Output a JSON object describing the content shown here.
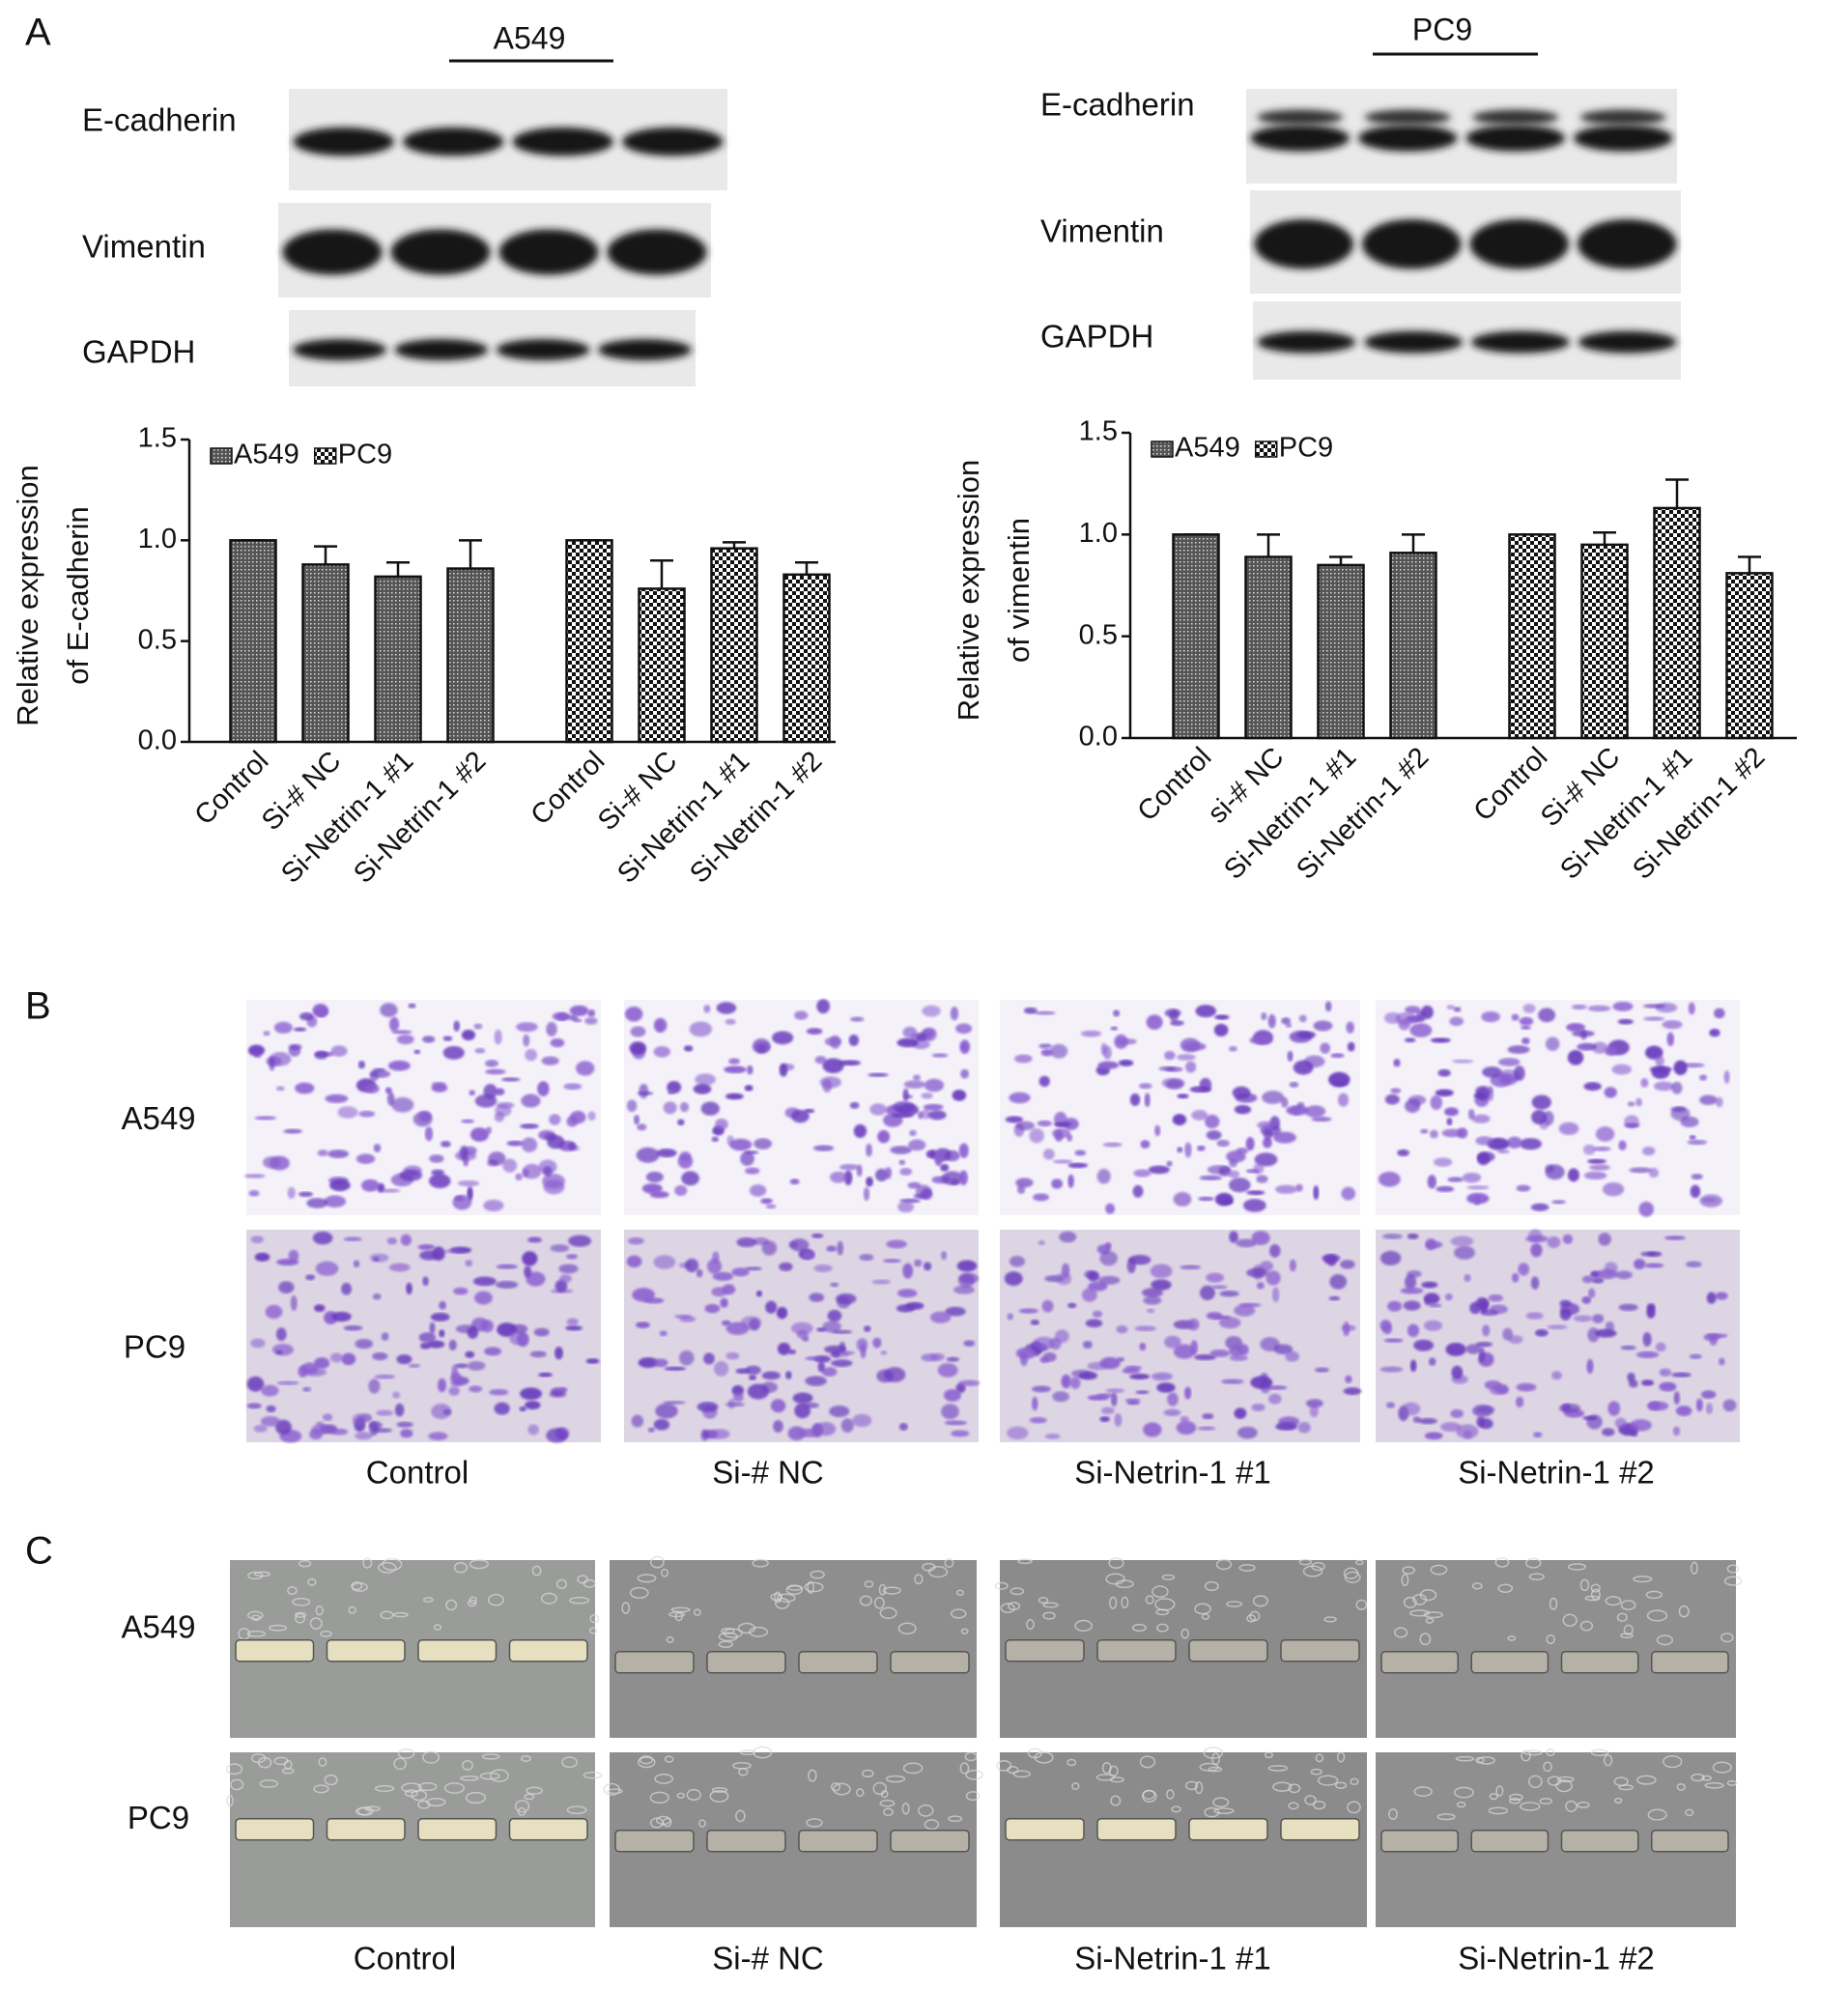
{
  "panel_labels": [
    "A",
    "B",
    "C"
  ],
  "blots": [
    {
      "cell_line": "A549",
      "rows": [
        "E-cadherin",
        "Vimentin",
        "GAPDH"
      ]
    },
    {
      "cell_line": "PC9",
      "rows": [
        "E-cadherin",
        "Vimentin",
        "GAPDH"
      ]
    }
  ],
  "chart_data": [
    {
      "type": "bar",
      "y_label": [
        "Relative expression",
        "of E-cadherin"
      ],
      "categories": [
        "Control",
        "Si-# NC",
        "Si-Netrin-1 #1",
        "Si-Netrin-1 #2",
        "Control",
        "Si-# NC",
        "Si-Netrin-1 #1",
        "Si-Netrin-1 #2"
      ],
      "series": [
        {
          "name": "A549",
          "color": "#555555",
          "pattern": "dots",
          "values": [
            1.0,
            0.88,
            0.82,
            0.86,
            null,
            null,
            null,
            null
          ],
          "errors": [
            0,
            0.09,
            0.07,
            0.14,
            null,
            null,
            null,
            null
          ]
        },
        {
          "name": "PC9",
          "color": "#111111",
          "pattern": "checker",
          "values": [
            null,
            null,
            null,
            null,
            1.0,
            0.76,
            0.96,
            0.83
          ],
          "errors": [
            null,
            null,
            null,
            null,
            0,
            0.14,
            0.03,
            0.06
          ]
        }
      ],
      "ylim": [
        0,
        1.5
      ],
      "yticks": [
        {
          "value": 0,
          "label": "0.0"
        },
        0.5,
        {
          "value": 1,
          "label": "1.0"
        },
        1.5
      ],
      "legend": "top-left",
      "grid": false
    },
    {
      "type": "bar",
      "y_label": [
        "Relative expression",
        "of  vimentin"
      ],
      "categories": [
        "Control",
        "si-# NC",
        "Si-Netrin-1 #1",
        "Si-Netrin-1 #2",
        "Control",
        "Si-# NC",
        "Si-Netrin-1 #1",
        "Si-Netrin-1 #2"
      ],
      "series": [
        {
          "name": "A549",
          "color": "#555555",
          "pattern": "dots",
          "values": [
            1.0,
            0.89,
            0.85,
            0.91,
            null,
            null,
            null,
            null
          ],
          "errors": [
            0,
            0.11,
            0.04,
            0.09,
            null,
            null,
            null,
            null
          ]
        },
        {
          "name": "PC9",
          "color": "#111111",
          "pattern": "checker",
          "values": [
            null,
            null,
            null,
            null,
            1.0,
            0.95,
            1.13,
            0.81
          ],
          "errors": [
            null,
            null,
            null,
            null,
            0,
            0.06,
            0.14,
            0.08
          ]
        }
      ],
      "ylim": [
        0,
        1.5
      ],
      "yticks": [
        {
          "value": 0,
          "label": "0.0"
        },
        0.5,
        {
          "value": 1,
          "label": "1.0"
        },
        1.5
      ],
      "legend": "top-left",
      "grid": false
    }
  ],
  "panel_b": {
    "rows": [
      "A549",
      "PC9"
    ],
    "columns": [
      "Control",
      "Si-# NC",
      "Si-Netrin-1 #1",
      "Si-Netrin-1 #2"
    ]
  },
  "panel_c": {
    "rows": [
      "A549",
      "PC9"
    ],
    "columns": [
      "Control",
      "Si-# NC",
      "Si-Netrin-1 #1",
      "Si-Netrin-1 #2"
    ]
  }
}
